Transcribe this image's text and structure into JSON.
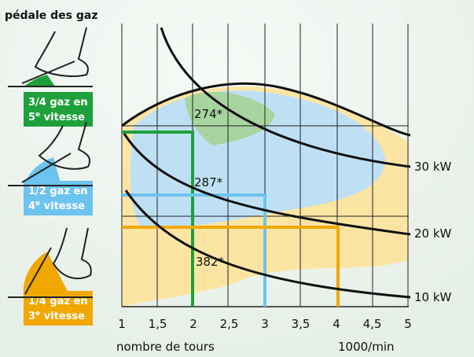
{
  "header": {
    "title": "pédale des gaz"
  },
  "pedals": [
    {
      "line1": "3/4 gaz en",
      "gear": "5",
      "sup": "e",
      "rest": " vitesse",
      "color": "#1ea03c"
    },
    {
      "line1": "1/2 gaz en",
      "gear": "4",
      "sup": "e",
      "rest": " vitesse",
      "color": "#6cc3ee"
    },
    {
      "line1": "1/4 gaz en",
      "gear": "3",
      "sup": "e",
      "rest": " vitesse",
      "color": "#f0a800"
    }
  ],
  "islands": [
    "274*",
    "287*",
    "382*"
  ],
  "power_curves": [
    "30 kW",
    "20 kW",
    "10 kW"
  ],
  "x_tick_labels": [
    "1",
    "1,5",
    "2",
    "2,5",
    "3",
    "3,5",
    "4",
    "4,5",
    "5"
  ],
  "x_axis": {
    "label": "nombre de tours",
    "unit": "1000/min"
  }
}
